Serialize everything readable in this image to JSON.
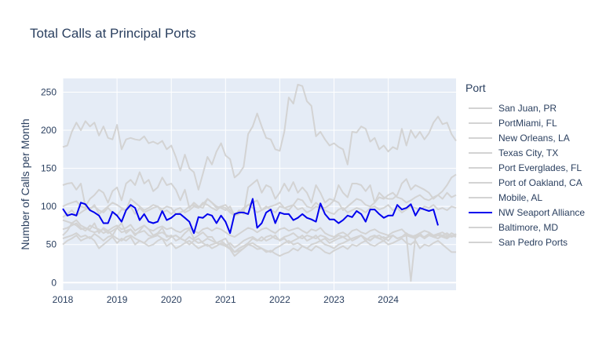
{
  "chart_data": {
    "type": "line",
    "title": "Total Calls at Principal Ports",
    "xlabel": "",
    "ylabel": "Number of Calls per Month",
    "x_start": "2018-01",
    "x_ticks": [
      "2018",
      "2019",
      "2020",
      "2021",
      "2022",
      "2023",
      "2024"
    ],
    "y_ticks": [
      0,
      50,
      100,
      150,
      200,
      250
    ],
    "ylim": [
      -10,
      268
    ],
    "grid": true,
    "legend_title": "Port",
    "legend_position": "right",
    "highlight_color": "#0000ee",
    "muted_color": "#d3d3d3",
    "series": [
      {
        "name": "San Juan, PR",
        "highlight": false,
        "values": [
          178,
          180,
          198,
          210,
          200,
          212,
          205,
          210,
          193,
          205,
          190,
          188,
          207,
          175,
          188,
          190,
          188,
          187,
          192,
          183,
          185,
          182,
          186,
          175,
          180,
          165,
          147,
          168,
          150,
          145,
          122,
          143,
          165,
          155,
          172,
          183,
          167,
          162,
          138,
          143,
          152,
          195,
          205,
          222,
          205,
          190,
          188,
          175,
          173,
          198,
          243,
          235,
          260,
          258,
          238,
          232,
          192,
          198,
          188,
          180,
          183,
          178,
          175,
          155,
          198,
          197,
          205,
          202,
          185,
          190,
          175,
          180,
          172,
          178,
          175,
          202,
          180,
          200,
          190,
          198,
          188,
          196,
          210,
          218,
          208,
          210,
          195,
          186
        ]
      },
      {
        "name": "PortMiami, FL",
        "highlight": false,
        "values": [
          128,
          130,
          131,
          122,
          130,
          100,
          110,
          115,
          122,
          118,
          105,
          120,
          125,
          108,
          130,
          135,
          128,
          145,
          130,
          135,
          120,
          125,
          138,
          128,
          130,
          122,
          108,
          122,
          98,
          105,
          100,
          98,
          110,
          105,
          100,
          98,
          95,
          100,
          88,
          95,
          90,
          125,
          130,
          135,
          118,
          128,
          125,
          110,
          118,
          130,
          120,
          132,
          118,
          125,
          118,
          105,
          128,
          118,
          105,
          110,
          108,
          128,
          118,
          112,
          130,
          130,
          128,
          120,
          128,
          105,
          118,
          112,
          110,
          110,
          115,
          130,
          136,
          122,
          128,
          125,
          122,
          118,
          110,
          115,
          120,
          128,
          138,
          142
        ]
      },
      {
        "name": "New Orleans, LA",
        "highlight": false,
        "values": [
          62,
          68,
          78,
          82,
          75,
          72,
          70,
          78,
          65,
          72,
          68,
          62,
          72,
          78,
          65,
          70,
          62,
          68,
          75,
          70,
          62,
          65,
          72,
          60,
          62,
          55,
          58,
          65,
          70,
          58,
          62,
          66,
          60,
          60,
          52,
          55,
          58,
          48,
          40,
          45,
          48,
          52,
          58,
          55,
          60,
          55,
          58,
          62,
          55,
          58,
          52,
          55,
          58,
          62,
          55,
          58,
          62,
          55,
          58,
          52,
          55,
          58,
          60,
          62,
          55,
          58,
          62,
          55,
          60,
          62,
          58,
          60,
          55,
          62,
          58,
          60,
          65,
          60,
          62,
          65,
          58,
          62,
          60,
          64,
          62,
          60,
          65,
          62
        ]
      },
      {
        "name": "Texas City, TX",
        "highlight": false,
        "values": [
          86,
          90,
          95,
          88,
          92,
          96,
          98,
          100,
          95,
          92,
          98,
          92,
          88,
          96,
          95,
          100,
          90,
          98,
          92,
          95,
          98,
          100,
          92,
          95,
          90,
          96,
          98,
          92,
          95,
          100,
          98,
          105,
          102,
          98,
          95,
          100,
          98,
          92,
          88,
          90,
          96,
          102,
          98,
          92,
          95,
          100,
          96,
          92,
          100,
          98,
          95,
          102,
          96,
          98,
          92,
          95,
          100,
          98,
          95,
          92,
          90,
          96,
          98,
          92,
          95,
          98,
          96,
          92,
          98,
          100,
          96,
          98,
          102,
          95,
          98,
          92,
          96,
          100,
          98,
          95,
          100,
          98,
          102,
          96,
          98,
          95,
          100,
          98
        ]
      },
      {
        "name": "Port Everglades, FL",
        "highlight": false,
        "values": [
          100,
          103,
          105,
          107,
          100,
          98,
          96,
          102,
          90,
          95,
          100,
          105,
          102,
          98,
          95,
          110,
          105,
          100,
          95,
          98,
          102,
          100,
          96,
          100,
          98,
          90,
          92,
          95,
          100,
          102,
          98,
          103,
          110,
          105,
          98,
          100,
          102,
          95,
          90,
          92,
          98,
          102,
          105,
          108,
          95,
          98,
          100,
          102,
          105,
          98,
          100,
          102,
          110,
          108,
          100,
          98,
          105,
          100,
          98,
          102,
          108,
          105,
          95,
          100,
          105,
          110,
          108,
          102,
          100,
          105,
          112,
          110,
          115,
          118,
          112,
          110,
          105,
          108,
          112,
          115,
          110,
          108,
          112,
          115,
          110,
          118,
          112,
          115
        ]
      },
      {
        "name": "Port of Oakland, CA",
        "highlight": false,
        "values": [
          70,
          72,
          75,
          78,
          72,
          68,
          75,
          72,
          70,
          65,
          68,
          72,
          75,
          70,
          72,
          76,
          68,
          72,
          75,
          70,
          68,
          72,
          74,
          70,
          72,
          68,
          66,
          70,
          72,
          68,
          65,
          70,
          72,
          68,
          72,
          70,
          66,
          62,
          60,
          64,
          68,
          72,
          70,
          66,
          70,
          72,
          68,
          65,
          70,
          72,
          68,
          70,
          72,
          68,
          65,
          70,
          68,
          72,
          65,
          62,
          60,
          64,
          66,
          62,
          68,
          70,
          66,
          64,
          68,
          70,
          66,
          64,
          62,
          66,
          68,
          70,
          64,
          62,
          60,
          65,
          68,
          66,
          62,
          64,
          66,
          62,
          60,
          64
        ]
      },
      {
        "name": "Mobile, AL",
        "highlight": false,
        "values": [
          50,
          55,
          58,
          62,
          55,
          58,
          60,
          55,
          45,
          50,
          55,
          60,
          52,
          58,
          55,
          60,
          50,
          55,
          52,
          48,
          50,
          55,
          58,
          48,
          52,
          45,
          48,
          52,
          55,
          50,
          45,
          48,
          50,
          45,
          48,
          52,
          48,
          44,
          35,
          40,
          45,
          50,
          48,
          44,
          45,
          40,
          42,
          38,
          35,
          38,
          40,
          45,
          42,
          48,
          45,
          42,
          48,
          45,
          40,
          38,
          42,
          45,
          48,
          44,
          50,
          48,
          52,
          55,
          50,
          48,
          52,
          55,
          50,
          52,
          55,
          58,
          52,
          50,
          55,
          45,
          50,
          48,
          52,
          55,
          50,
          45,
          40,
          40
        ]
      },
      {
        "name": "Baltimore, MD",
        "highlight": false,
        "values": [
          58,
          60,
          62,
          65,
          60,
          62,
          58,
          64,
          60,
          55,
          60,
          62,
          58,
          55,
          60,
          62,
          58,
          55,
          52,
          58,
          60,
          62,
          58,
          55,
          60,
          62,
          58,
          55,
          50,
          55,
          58,
          52,
          48,
          50,
          52,
          55,
          50,
          45,
          40,
          42,
          45,
          50,
          52,
          48,
          45,
          42,
          40,
          45,
          48,
          52,
          55,
          50,
          52,
          48,
          45,
          50,
          52,
          55,
          50,
          48,
          45,
          50,
          52,
          55,
          58,
          60,
          62,
          58,
          55,
          60,
          62,
          58,
          60,
          62,
          58,
          60,
          62,
          60,
          58,
          62,
          60,
          64,
          60,
          58,
          62,
          65,
          60,
          62
        ]
      },
      {
        "name": "San Pedro Ports",
        "highlight": false,
        "values": [
          82,
          80,
          78,
          75,
          70,
          72,
          68,
          66,
          68,
          70,
          65,
          68,
          72,
          66,
          68,
          70,
          64,
          66,
          68,
          62,
          60,
          64,
          66,
          62,
          60,
          62,
          58,
          55,
          60,
          56,
          52,
          54,
          58,
          55,
          52,
          50,
          48,
          52,
          46,
          50,
          55,
          58,
          60,
          56,
          55,
          60,
          62,
          58,
          56,
          60,
          62,
          65,
          60,
          58,
          62,
          60,
          58,
          62,
          60,
          56,
          58,
          62,
          60,
          56,
          58,
          60,
          62,
          58,
          56,
          60,
          58,
          55,
          60,
          62,
          58,
          60,
          62,
          2,
          60,
          62,
          58,
          64,
          60,
          62,
          60,
          58,
          62,
          60
        ]
      },
      {
        "name": "NW Seaport Alliance",
        "highlight": true,
        "values": [
          97,
          88,
          90,
          88,
          105,
          103,
          95,
          92,
          88,
          78,
          78,
          93,
          88,
          80,
          95,
          102,
          98,
          82,
          90,
          80,
          78,
          80,
          94,
          82,
          85,
          90,
          90,
          85,
          80,
          65,
          86,
          85,
          90,
          88,
          78,
          88,
          80,
          65,
          90,
          92,
          92,
          90,
          110,
          72,
          78,
          92,
          96,
          78,
          92,
          90,
          90,
          82,
          85,
          90,
          85,
          83,
          80,
          104,
          90,
          83,
          83,
          78,
          82,
          88,
          86,
          94,
          90,
          80,
          96,
          96,
          90,
          85,
          88,
          88,
          102,
          96,
          98,
          103,
          88,
          98,
          96,
          94,
          96,
          75
        ]
      }
    ]
  }
}
